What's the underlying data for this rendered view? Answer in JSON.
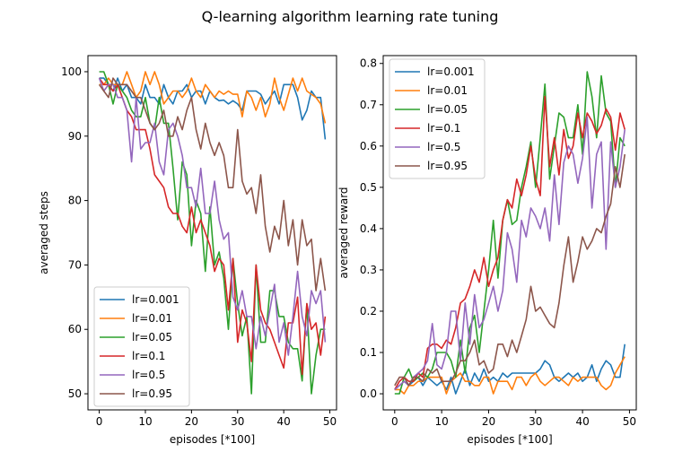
{
  "figure": {
    "title": "Q-learning algorithm learning rate tuning"
  },
  "chart_data": [
    {
      "type": "line",
      "xlabel": "episodes [*100]",
      "ylabel": "averaged steps",
      "xlim": [
        -2.45,
        51.45
      ],
      "ylim": [
        47.5,
        102.5
      ],
      "xticks": [
        0,
        10,
        20,
        30,
        40,
        50
      ],
      "yticks": [
        50,
        60,
        70,
        80,
        90,
        100
      ],
      "grid": false,
      "legend": "lower-left",
      "x": [
        0,
        1,
        2,
        3,
        4,
        5,
        6,
        7,
        8,
        9,
        10,
        11,
        12,
        13,
        14,
        15,
        16,
        17,
        18,
        19,
        20,
        21,
        22,
        23,
        24,
        25,
        26,
        27,
        28,
        29,
        30,
        31,
        32,
        33,
        34,
        35,
        36,
        37,
        38,
        39,
        40,
        41,
        42,
        43,
        44,
        45,
        46,
        47,
        48,
        49
      ],
      "series": [
        {
          "name": "lr=0.001",
          "color": "#1f77b4",
          "values": [
            99,
            99,
            98,
            97,
            99,
            97,
            98,
            96,
            96,
            95,
            98,
            96,
            96,
            95,
            98,
            96,
            95,
            97,
            97,
            98,
            96,
            97,
            97,
            95,
            97,
            96,
            95.5,
            95.6,
            95,
            95.5,
            95,
            94,
            97,
            97,
            97,
            96.5,
            95,
            96,
            97,
            95,
            98,
            98,
            98,
            96,
            92.5,
            94,
            97,
            96,
            96,
            89.5
          ]
        },
        {
          "name": "lr=0.01",
          "color": "#ff7f0e",
          "values": [
            98,
            98,
            99,
            98,
            98,
            98,
            100,
            98,
            96,
            97,
            100,
            98,
            100,
            98,
            95,
            96,
            97,
            97,
            96,
            97,
            99,
            97,
            96,
            98,
            97,
            96,
            97,
            96.5,
            97,
            96.5,
            96.5,
            93,
            97,
            96,
            94,
            96,
            93,
            95,
            99,
            96,
            94,
            96.5,
            99,
            97,
            99,
            97,
            96.5,
            96,
            95,
            92
          ]
        },
        {
          "name": "lr=0.05",
          "color": "#2ca02c",
          "values": [
            100,
            100,
            98,
            95,
            98,
            97,
            96,
            94,
            93,
            93,
            96,
            92,
            91,
            96,
            92,
            92,
            85,
            77,
            86,
            84,
            73,
            80,
            78,
            69,
            79,
            70,
            72,
            68,
            60,
            71,
            64,
            59,
            62,
            50,
            70,
            58,
            58,
            66,
            66,
            62,
            62,
            58,
            57,
            57,
            52,
            64,
            50,
            56,
            60,
            60
          ]
        },
        {
          "name": "lr=0.1",
          "color": "#d62728",
          "values": [
            99,
            98,
            98,
            97,
            98,
            96,
            94,
            93,
            91,
            91,
            91,
            88,
            84,
            83,
            82,
            79,
            78,
            78,
            76,
            75,
            79,
            75,
            77,
            75,
            73,
            69,
            71,
            70,
            63,
            71,
            58,
            63,
            61,
            55,
            70,
            63,
            61,
            60,
            58,
            56,
            54,
            61,
            61,
            65,
            53,
            64,
            60,
            61,
            56,
            62
          ]
        },
        {
          "name": "lr=0.5",
          "color": "#9467bd",
          "values": [
            99,
            97,
            98,
            98,
            96,
            96,
            94,
            86,
            96,
            88,
            89,
            89,
            92,
            86,
            84,
            91,
            92,
            90,
            87,
            82,
            82,
            79,
            85,
            78,
            78,
            83,
            77,
            74,
            75,
            65,
            63,
            66,
            62,
            62,
            57,
            62,
            59,
            63,
            67,
            58,
            61,
            56,
            62,
            69,
            62,
            59,
            66,
            64,
            66,
            58
          ]
        },
        {
          "name": "lr=0.95",
          "color": "#8c564b",
          "values": [
            98,
            97,
            96,
            99,
            98,
            98,
            98,
            97,
            96,
            96,
            94,
            92,
            91,
            92,
            94,
            90,
            90,
            93,
            91,
            94,
            96,
            91,
            88,
            92,
            89,
            87,
            89,
            87,
            82,
            82,
            91,
            83,
            81,
            82,
            78,
            84,
            76,
            72,
            76,
            74,
            80,
            73,
            77,
            70,
            77,
            73,
            74,
            66,
            71,
            66
          ]
        }
      ]
    },
    {
      "type": "line",
      "xlabel": "episodes [*100]",
      "ylabel": "averaged reward",
      "xlim": [
        -2.45,
        51.45
      ],
      "ylim": [
        -0.039,
        0.819
      ],
      "xticks": [
        0,
        10,
        20,
        30,
        40,
        50
      ],
      "yticks": [
        0.0,
        0.1,
        0.2,
        0.3,
        0.4,
        0.5,
        0.6,
        0.7,
        0.8
      ],
      "grid": false,
      "legend": "upper-left",
      "x": [
        0,
        1,
        2,
        3,
        4,
        5,
        6,
        7,
        8,
        9,
        10,
        11,
        12,
        13,
        14,
        15,
        16,
        17,
        18,
        19,
        20,
        21,
        22,
        23,
        24,
        25,
        26,
        27,
        28,
        29,
        30,
        31,
        32,
        33,
        34,
        35,
        36,
        37,
        38,
        39,
        40,
        41,
        42,
        43,
        44,
        45,
        46,
        47,
        48,
        49
      ],
      "series": [
        {
          "name": "lr=0.001",
          "color": "#1f77b4",
          "values": [
            0.01,
            0.02,
            0.03,
            0.02,
            0.03,
            0.04,
            0.02,
            0.04,
            0.03,
            0.02,
            0.03,
            0.01,
            0.04,
            0.0,
            0.03,
            0.06,
            0.02,
            0.05,
            0.03,
            0.06,
            0.03,
            0.04,
            0.03,
            0.05,
            0.04,
            0.05,
            0.05,
            0.05,
            0.05,
            0.05,
            0.05,
            0.06,
            0.08,
            0.07,
            0.04,
            0.03,
            0.04,
            0.05,
            0.04,
            0.05,
            0.03,
            0.04,
            0.07,
            0.03,
            0.06,
            0.08,
            0.07,
            0.04,
            0.04,
            0.12
          ]
        },
        {
          "name": "lr=0.01",
          "color": "#ff7f0e",
          "values": [
            0.01,
            0.01,
            0.0,
            0.02,
            0.02,
            0.03,
            0.03,
            0.04,
            0.04,
            0.04,
            0.04,
            0.0,
            0.03,
            0.04,
            0.05,
            0.03,
            0.03,
            0.02,
            0.02,
            0.04,
            0.04,
            0.0,
            0.03,
            0.03,
            0.03,
            0.01,
            0.04,
            0.04,
            0.02,
            0.04,
            0.05,
            0.03,
            0.02,
            0.03,
            0.04,
            0.04,
            0.03,
            0.02,
            0.04,
            0.03,
            0.04,
            0.04,
            0.04,
            0.04,
            0.02,
            0.01,
            0.02,
            0.05,
            0.07,
            0.09
          ]
        },
        {
          "name": "lr=0.05",
          "color": "#2ca02c",
          "values": [
            0.0,
            0.0,
            0.04,
            0.06,
            0.03,
            0.04,
            0.05,
            0.04,
            0.06,
            0.1,
            0.1,
            0.1,
            0.08,
            0.04,
            0.13,
            0.05,
            0.16,
            0.19,
            0.1,
            0.2,
            0.3,
            0.42,
            0.28,
            0.42,
            0.47,
            0.41,
            0.42,
            0.5,
            0.55,
            0.61,
            0.5,
            0.62,
            0.75,
            0.52,
            0.6,
            0.68,
            0.67,
            0.62,
            0.62,
            0.7,
            0.58,
            0.78,
            0.72,
            0.62,
            0.77,
            0.68,
            0.66,
            0.5,
            0.62,
            0.6
          ]
        },
        {
          "name": "lr=0.1",
          "color": "#d62728",
          "values": [
            0.01,
            0.03,
            0.04,
            0.03,
            0.03,
            0.05,
            0.04,
            0.11,
            0.12,
            0.12,
            0.11,
            0.13,
            0.12,
            0.16,
            0.22,
            0.23,
            0.26,
            0.3,
            0.27,
            0.33,
            0.26,
            0.3,
            0.33,
            0.42,
            0.47,
            0.45,
            0.52,
            0.48,
            0.53,
            0.6,
            0.52,
            0.48,
            0.72,
            0.55,
            0.62,
            0.53,
            0.64,
            0.57,
            0.6,
            0.68,
            0.62,
            0.68,
            0.66,
            0.63,
            0.65,
            0.69,
            0.67,
            0.59,
            0.68,
            0.64
          ]
        },
        {
          "name": "lr=0.5",
          "color": "#9467bd",
          "values": [
            0.01,
            0.02,
            0.03,
            0.02,
            0.04,
            0.05,
            0.06,
            0.08,
            0.17,
            0.07,
            0.06,
            0.1,
            0.2,
            0.2,
            0.08,
            0.22,
            0.12,
            0.24,
            0.16,
            0.18,
            0.22,
            0.26,
            0.2,
            0.25,
            0.39,
            0.35,
            0.27,
            0.42,
            0.38,
            0.45,
            0.43,
            0.4,
            0.45,
            0.37,
            0.53,
            0.41,
            0.56,
            0.6,
            0.58,
            0.51,
            0.57,
            0.67,
            0.45,
            0.58,
            0.61,
            0.35,
            0.61,
            0.5,
            0.55,
            0.64
          ]
        },
        {
          "name": "lr=0.95",
          "color": "#8c564b",
          "values": [
            0.02,
            0.04,
            0.04,
            0.02,
            0.04,
            0.04,
            0.03,
            0.06,
            0.05,
            0.06,
            0.03,
            0.03,
            0.03,
            0.05,
            0.08,
            0.08,
            0.1,
            0.13,
            0.07,
            0.08,
            0.05,
            0.06,
            0.12,
            0.12,
            0.09,
            0.13,
            0.1,
            0.14,
            0.18,
            0.26,
            0.2,
            0.21,
            0.19,
            0.17,
            0.16,
            0.22,
            0.31,
            0.38,
            0.27,
            0.32,
            0.38,
            0.35,
            0.37,
            0.4,
            0.39,
            0.43,
            0.46,
            0.55,
            0.5,
            0.58
          ]
        }
      ]
    }
  ]
}
